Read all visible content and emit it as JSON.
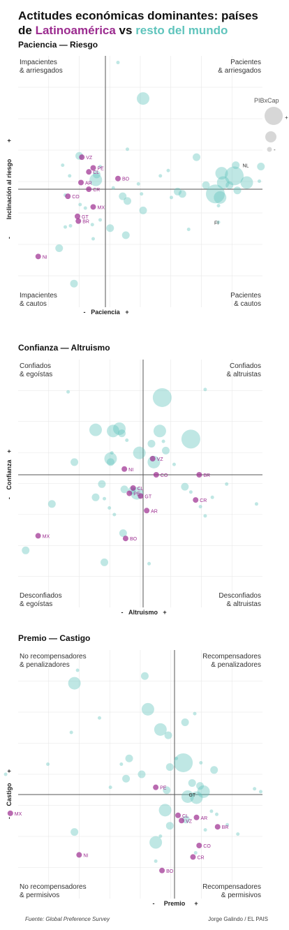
{
  "title": {
    "line1": "Actitudes económicas dominantes: países",
    "line2_prefix": "de ",
    "line2_lat": "Latinoamérica",
    "line2_vs": " vs ",
    "line2_rest": "resto del mundo"
  },
  "colors": {
    "latam": "#9b2b8f",
    "rest": "#5fc4bc",
    "axis": "#555555",
    "grid": "#e6e6e6"
  },
  "legend": {
    "title": "PIBxCap",
    "plus": "+",
    "minus": "-"
  },
  "footer": {
    "source": "Fuente: Global Preference Survey",
    "credit": "Jorge Galindo / EL PAIS"
  },
  "chart_data": [
    {
      "type": "scatter",
      "title": "Paciencia — Riesgo",
      "xlabel": "Paciencia",
      "ylabel": "Inclinación al riesgo",
      "xlim": [
        -1,
        1
      ],
      "ylim": [
        -1,
        1
      ],
      "axis_minus": "-",
      "axis_plus": "+",
      "quadrants": {
        "top_left": [
          "Impacientes",
          "& arriesgados"
        ],
        "top_right": [
          "Pacientes",
          "& arriesgados"
        ],
        "bottom_left": [
          "Impacientes",
          "& cautos"
        ],
        "bottom_right": [
          "Pacientes",
          "& cautos"
        ]
      },
      "latam": [
        {
          "label": "VZ",
          "x": -0.27,
          "y": 0.24
        },
        {
          "label": "PE",
          "x": -0.14,
          "y": 0.16
        },
        {
          "label": "CL",
          "x": -0.19,
          "y": 0.13
        },
        {
          "label": "AR",
          "x": -0.28,
          "y": 0.05
        },
        {
          "label": "BO",
          "x": 0.08,
          "y": 0.08
        },
        {
          "label": "CR",
          "x": -0.19,
          "y": 0.0
        },
        {
          "label": "CO",
          "x": -0.43,
          "y": -0.06
        },
        {
          "label": "MX",
          "x": -0.14,
          "y": -0.15
        },
        {
          "label": "GT",
          "x": -0.32,
          "y": -0.23
        },
        {
          "label": "BR",
          "x": -0.31,
          "y": -0.27
        },
        {
          "label": "NI",
          "x": -0.77,
          "y": -0.57
        }
      ],
      "rest": [
        {
          "x": 0.24,
          "y": 0.68,
          "s": 3
        },
        {
          "x": 0.08,
          "y": 0.95,
          "s": 1
        },
        {
          "x": 0.58,
          "y": 0.24,
          "s": 2
        },
        {
          "x": 0.99,
          "y": 0.17,
          "s": 2
        },
        {
          "x": 0.9,
          "y": 0.05,
          "s": 3
        },
        {
          "x": 0.83,
          "y": 0.18,
          "s": 2
        },
        {
          "x": 0.98,
          "y": 0.06,
          "s": 1
        },
        {
          "x": 0.74,
          "y": 0.12,
          "s": 3
        },
        {
          "x": 0.82,
          "y": 0.1,
          "s": 4
        },
        {
          "x": 0.75,
          "y": 0.05,
          "s": 3
        },
        {
          "x": 0.79,
          "y": 0.03,
          "s": 2
        },
        {
          "x": 0.64,
          "y": 0.03,
          "s": 2
        },
        {
          "x": 0.84,
          "y": -0.01,
          "s": 2
        },
        {
          "x": 0.7,
          "y": -0.04,
          "s": 4
        },
        {
          "x": 0.73,
          "y": -0.07,
          "s": 3
        },
        {
          "x": 0.72,
          "y": -0.14,
          "s": 1
        },
        {
          "x": 0.46,
          "y": -0.02,
          "s": 2
        },
        {
          "x": 0.49,
          "y": -0.04,
          "s": 2
        },
        {
          "x": 0.42,
          "y": -0.07,
          "s": 1
        },
        {
          "x": 0.23,
          "y": -0.04,
          "s": 1
        },
        {
          "x": 0.11,
          "y": -0.06,
          "s": 2
        },
        {
          "x": 0.14,
          "y": -0.1,
          "s": 2
        },
        {
          "x": 0.24,
          "y": -0.18,
          "s": 2
        },
        {
          "x": 0.05,
          "y": 0.01,
          "s": 1
        },
        {
          "x": 0.21,
          "y": 0.04,
          "s": 1
        },
        {
          "x": 0.35,
          "y": 0.1,
          "s": 1
        },
        {
          "x": 0.4,
          "y": 0.14,
          "s": 1
        },
        {
          "x": 0.14,
          "y": 0.3,
          "s": 1
        },
        {
          "x": -0.11,
          "y": 0.07,
          "s": 3
        },
        {
          "x": -0.1,
          "y": 0.11,
          "s": 2
        },
        {
          "x": -0.06,
          "y": 0.17,
          "s": 1
        },
        {
          "x": -0.3,
          "y": 0.25,
          "s": 2
        },
        {
          "x": -0.49,
          "y": 0.18,
          "s": 1
        },
        {
          "x": -0.41,
          "y": 0.1,
          "s": 1
        },
        {
          "x": -0.46,
          "y": -0.05,
          "s": 1
        },
        {
          "x": -0.29,
          "y": -0.13,
          "s": 1
        },
        {
          "x": -0.23,
          "y": -0.16,
          "s": 1
        },
        {
          "x": -0.06,
          "y": -0.26,
          "s": 1
        },
        {
          "x": 0.03,
          "y": -0.33,
          "s": 2
        },
        {
          "x": 0.13,
          "y": -0.39,
          "s": 2
        },
        {
          "x": -0.46,
          "y": -0.32,
          "s": 1
        },
        {
          "x": -0.4,
          "y": -0.31,
          "s": 1
        },
        {
          "x": -0.14,
          "y": -0.42,
          "s": 1
        },
        {
          "x": -0.53,
          "y": -0.5,
          "s": 2
        },
        {
          "x": -0.36,
          "y": -0.8,
          "s": 2
        },
        {
          "x": -0.15,
          "y": -0.3,
          "s": 1
        },
        {
          "x": 0.53,
          "y": -0.34,
          "s": 1
        },
        {
          "x": 0.72,
          "y": -0.28,
          "s": 1
        }
      ],
      "rest_labels": [
        {
          "label": "NL",
          "x": 0.9,
          "y": 0.18
        },
        {
          "label": "FI",
          "x": 0.72,
          "y": -0.28
        }
      ]
    },
    {
      "type": "scatter",
      "title": "Confianza — Altruismo",
      "xlabel": "Altruismo",
      "ylabel": "Confianza",
      "xlim": [
        -1,
        1
      ],
      "ylim": [
        -1,
        1
      ],
      "axis_minus": "-",
      "axis_plus": "+",
      "quadrants": {
        "top_left": [
          "Confiados",
          "& egoístas"
        ],
        "top_right": [
          "Confiados",
          "& altruistas"
        ],
        "bottom_left": [
          "Desconfiados",
          "& egoístas"
        ],
        "bottom_right": [
          "Desconfiados",
          "& altruistas"
        ]
      },
      "latam": [
        {
          "label": "VZ",
          "x": 0.08,
          "y": 0.14
        },
        {
          "label": "NI",
          "x": -0.15,
          "y": 0.05
        },
        {
          "label": "CO",
          "x": 0.11,
          "y": 0.0
        },
        {
          "label": "BR",
          "x": 0.47,
          "y": 0.0
        },
        {
          "label": "CL",
          "x": -0.08,
          "y": -0.1
        },
        {
          "label": "PE",
          "x": -0.11,
          "y": -0.14
        },
        {
          "label": "GT",
          "x": -0.02,
          "y": -0.16
        },
        {
          "label": "CR",
          "x": 0.44,
          "y": -0.19
        },
        {
          "label": "AR",
          "x": 0.03,
          "y": -0.27
        },
        {
          "label": "MX",
          "x": -0.84,
          "y": -0.46
        },
        {
          "label": "BO",
          "x": -0.14,
          "y": -0.48
        }
      ],
      "rest": [
        {
          "x": 0.16,
          "y": 0.67,
          "s": 4
        },
        {
          "x": -0.6,
          "y": 0.72,
          "s": 1
        },
        {
          "x": 0.52,
          "y": 0.74,
          "s": 1
        },
        {
          "x": -0.38,
          "y": 0.39,
          "s": 3
        },
        {
          "x": -0.19,
          "y": 0.4,
          "s": 3
        },
        {
          "x": -0.24,
          "y": 0.38,
          "s": 3
        },
        {
          "x": -0.17,
          "y": 0.36,
          "s": 2
        },
        {
          "x": 0.14,
          "y": 0.38,
          "s": 3
        },
        {
          "x": 0.4,
          "y": 0.31,
          "s": 4
        },
        {
          "x": 0.17,
          "y": 0.29,
          "s": 1
        },
        {
          "x": 0.07,
          "y": 0.27,
          "s": 2
        },
        {
          "x": -0.13,
          "y": 0.3,
          "s": 1
        },
        {
          "x": -0.03,
          "y": 0.19,
          "s": 3
        },
        {
          "x": 0.19,
          "y": 0.21,
          "s": 2
        },
        {
          "x": -0.25,
          "y": 0.19,
          "s": 1
        },
        {
          "x": -0.26,
          "y": 0.14,
          "s": 3
        },
        {
          "x": -0.26,
          "y": 0.11,
          "s": 2
        },
        {
          "x": -0.55,
          "y": 0.11,
          "s": 2
        },
        {
          "x": 0.09,
          "y": 0.11,
          "s": 3
        },
        {
          "x": 0.26,
          "y": 0.09,
          "s": 1
        },
        {
          "x": -0.33,
          "y": -0.07,
          "s": 2
        },
        {
          "x": -0.15,
          "y": -0.11,
          "s": 2
        },
        {
          "x": -0.09,
          "y": -0.12,
          "s": 2
        },
        {
          "x": -0.05,
          "y": -0.14,
          "s": 3
        },
        {
          "x": -0.31,
          "y": -0.18,
          "s": 1
        },
        {
          "x": -0.38,
          "y": -0.17,
          "s": 2
        },
        {
          "x": -0.27,
          "y": -0.25,
          "s": 1
        },
        {
          "x": -0.23,
          "y": -0.3,
          "s": 1
        },
        {
          "x": -0.73,
          "y": -0.22,
          "s": 2
        },
        {
          "x": 0.35,
          "y": -0.09,
          "s": 2
        },
        {
          "x": 0.4,
          "y": -0.13,
          "s": 1
        },
        {
          "x": 0.48,
          "y": -0.24,
          "s": 1
        },
        {
          "x": 0.52,
          "y": -0.31,
          "s": 1
        },
        {
          "x": 0.58,
          "y": -0.17,
          "s": 1
        },
        {
          "x": 0.7,
          "y": -0.07,
          "s": 1
        },
        {
          "x": -0.16,
          "y": -0.44,
          "s": 2
        },
        {
          "x": -0.94,
          "y": -0.57,
          "s": 2
        },
        {
          "x": -0.31,
          "y": -0.66,
          "s": 2
        },
        {
          "x": 0.05,
          "y": -0.67,
          "s": 1
        },
        {
          "x": 0.95,
          "y": -0.22,
          "s": 1
        }
      ]
    },
    {
      "type": "scatter",
      "title": "Premio — Castigo",
      "xlabel": "Premio",
      "ylabel": "Castigo",
      "xlim": [
        -1,
        1
      ],
      "ylim": [
        -1,
        1
      ],
      "axis_minus": "-",
      "axis_plus": "+",
      "quadrants": {
        "top_left": [
          "No recompensadores",
          "& penalizadores"
        ],
        "top_right": [
          "Recompensadores",
          "& penalizadores"
        ],
        "bottom_left": [
          "No recompensadores",
          "& permisivos"
        ],
        "bottom_right": [
          "Recompensadores",
          "& permisivos"
        ]
      },
      "latam": [
        {
          "label": "PE",
          "x": -0.12,
          "y": 0.05
        },
        {
          "label": "CL",
          "x": 0.04,
          "y": -0.2
        },
        {
          "label": "VZ",
          "x": 0.08,
          "y": -0.25
        },
        {
          "label": "AR",
          "x": 0.25,
          "y": -0.22
        },
        {
          "label": "BR",
          "x": 0.49,
          "y": -0.31
        },
        {
          "label": "CO",
          "x": 0.28,
          "y": -0.49
        },
        {
          "label": "CR",
          "x": 0.21,
          "y": -0.6
        },
        {
          "label": "MX",
          "x": -1.05,
          "y": -0.18
        },
        {
          "label": "NI",
          "x": -0.61,
          "y": -0.58
        },
        {
          "label": "BO",
          "x": -0.08,
          "y": -0.73
        }
      ],
      "rest": [
        {
          "x": -0.62,
          "y": 0.86,
          "s": 1
        },
        {
          "x": -0.64,
          "y": 0.77,
          "s": 3
        },
        {
          "x": -0.19,
          "y": 0.82,
          "s": 2
        },
        {
          "x": -0.17,
          "y": 0.59,
          "s": 3
        },
        {
          "x": -0.09,
          "y": 0.45,
          "s": 3
        },
        {
          "x": -0.04,
          "y": 0.41,
          "s": 2
        },
        {
          "x": 0.12,
          "y": 0.5,
          "s": 2
        },
        {
          "x": 0.23,
          "y": 0.56,
          "s": 1
        },
        {
          "x": -0.48,
          "y": 0.53,
          "s": 1
        },
        {
          "x": -0.29,
          "y": 0.25,
          "s": 2
        },
        {
          "x": -0.34,
          "y": 0.21,
          "s": 1
        },
        {
          "x": -0.31,
          "y": 0.11,
          "s": 2
        },
        {
          "x": -0.21,
          "y": 0.14,
          "s": 2
        },
        {
          "x": -0.81,
          "y": 0.21,
          "s": 1
        },
        {
          "x": 0.1,
          "y": 0.22,
          "s": 4
        },
        {
          "x": -0.03,
          "y": 0.19,
          "s": 2
        },
        {
          "x": 0.02,
          "y": 0.25,
          "s": 1
        },
        {
          "x": 0.3,
          "y": 0.22,
          "s": 1
        },
        {
          "x": 0.45,
          "y": 0.17,
          "s": 2
        },
        {
          "x": 0.2,
          "y": 0.08,
          "s": 2
        },
        {
          "x": 0.29,
          "y": 0.06,
          "s": 2
        },
        {
          "x": 0.33,
          "y": 0.02,
          "s": 3
        },
        {
          "x": 0.25,
          "y": -0.03,
          "s": 3
        },
        {
          "x": 0.15,
          "y": -0.02,
          "s": 3
        },
        {
          "x": -0.05,
          "y": 0.03,
          "s": 2
        },
        {
          "x": 0.91,
          "y": 0.04,
          "s": 1
        },
        {
          "x": 0.98,
          "y": 0.02,
          "s": 1
        },
        {
          "x": -1.08,
          "y": 0.14,
          "s": 1
        },
        {
          "x": -0.66,
          "y": 0.43,
          "s": 1
        },
        {
          "x": -0.41,
          "y": 0.05,
          "s": 1
        },
        {
          "x": -0.06,
          "y": -0.15,
          "s": 3
        },
        {
          "x": 0.13,
          "y": -0.24,
          "s": 2
        },
        {
          "x": 0.42,
          "y": -0.16,
          "s": 1
        },
        {
          "x": 0.48,
          "y": -0.19,
          "s": 1
        },
        {
          "x": 0.6,
          "y": -0.29,
          "s": 1
        },
        {
          "x": -0.03,
          "y": -0.3,
          "s": 2
        },
        {
          "x": -0.09,
          "y": -0.4,
          "s": 1
        },
        {
          "x": -0.12,
          "y": -0.46,
          "s": 3
        },
        {
          "x": -0.64,
          "y": -0.36,
          "s": 2
        },
        {
          "x": -0.12,
          "y": -0.64,
          "s": 1
        },
        {
          "x": 0.24,
          "y": -0.56,
          "s": 1
        },
        {
          "x": 0.35,
          "y": -0.34,
          "s": 1
        },
        {
          "x": 0.72,
          "y": -0.38,
          "s": 1
        }
      ],
      "rest_labels": [
        {
          "label": "GT",
          "x": 0.21,
          "y": 0.0
        }
      ]
    }
  ]
}
